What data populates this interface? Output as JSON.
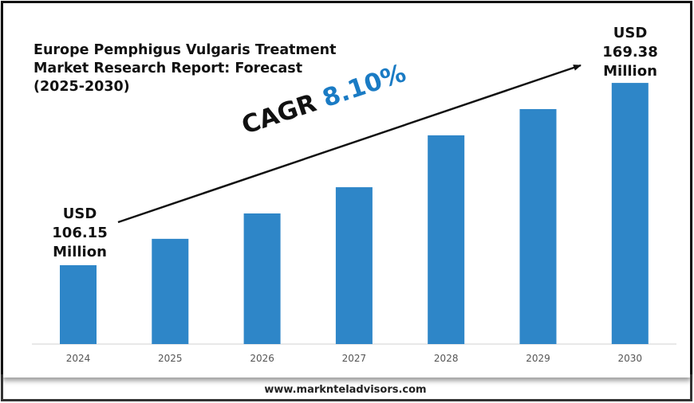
{
  "chart_data": {
    "type": "bar",
    "title": "Europe Pemphigus Vulgaris Treatment\nMarket Research Report: Forecast\n(2025-2030)",
    "categories": [
      "2024",
      "2025",
      "2026",
      "2027",
      "2028",
      "2029",
      "2030"
    ],
    "values": [
      106.15,
      115.3,
      124.1,
      133.2,
      151.2,
      160.3,
      169.38
    ],
    "bar_color": "#2e86c8",
    "accent_color": "#1a7bc4",
    "grid": false,
    "annotations": {
      "start": [
        "USD",
        "106.15",
        "Million"
      ],
      "end": [
        "USD",
        "169.38",
        "Million"
      ],
      "cagr_label": "CAGR",
      "cagr_value": "8.10%"
    }
  },
  "footer": {
    "url": "www.marknteladvisors.com"
  }
}
